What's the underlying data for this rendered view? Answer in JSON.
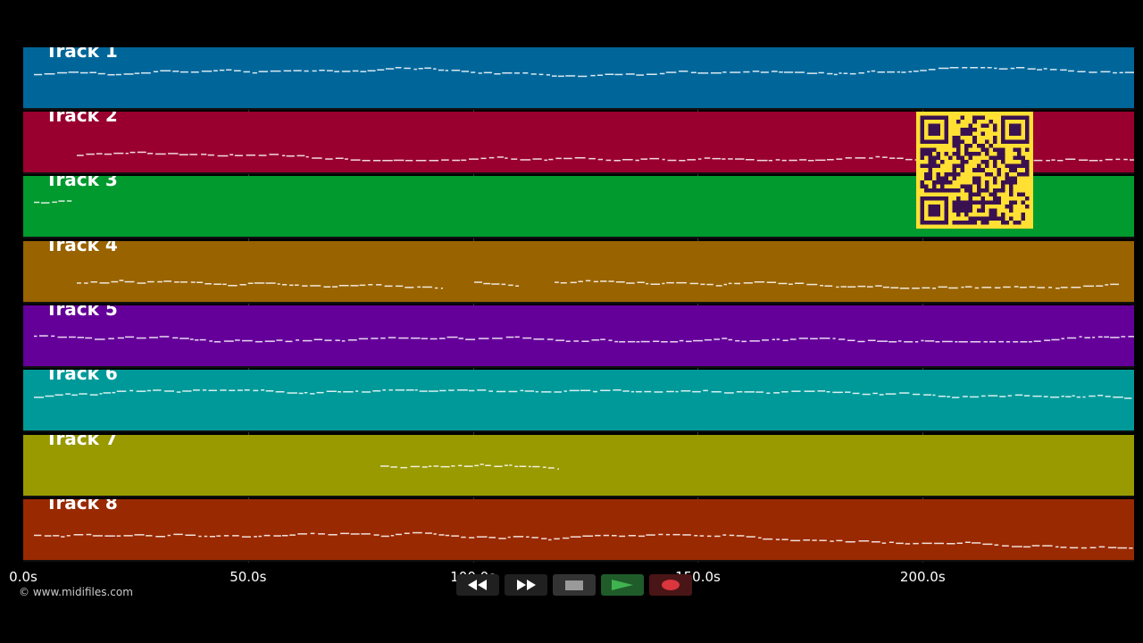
{
  "timeline": {
    "ticks": [
      "0.0s",
      "50.0s",
      "100.0s",
      "150.0s",
      "200.0s"
    ],
    "tick_seconds": [
      0,
      50,
      100,
      150,
      200
    ],
    "duration_seconds": 247
  },
  "tracks": [
    {
      "name": "Track 1",
      "color": "#00669a"
    },
    {
      "name": "Track 2",
      "color": "#99002f"
    },
    {
      "name": "Track 3",
      "color": "#009a2e"
    },
    {
      "name": "Track 4",
      "color": "#996300"
    },
    {
      "name": "Track 5",
      "color": "#640099"
    },
    {
      "name": "Track 6",
      "color": "#009999"
    },
    {
      "name": "Track 7",
      "color": "#999900"
    },
    {
      "name": "Track 8",
      "color": "#992900"
    }
  ],
  "transport": {
    "rewind": {
      "icon": "rewind-icon"
    },
    "fast_forward": {
      "icon": "fast-forward-icon"
    },
    "stop": {
      "icon": "stop-icon"
    },
    "play": {
      "icon": "play-icon",
      "color": "#3fb34f"
    },
    "record": {
      "icon": "record-icon",
      "color": "#d9363e"
    }
  },
  "copyright": "© www.midifiles.com",
  "qr_code": {
    "color": "#ffe033"
  }
}
